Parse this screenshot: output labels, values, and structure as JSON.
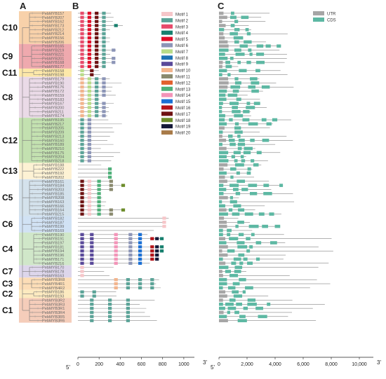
{
  "panels": {
    "a": "A",
    "b": "B",
    "c": "C"
  },
  "groups": [
    {
      "name": "C10",
      "color": "#f7c99b",
      "genes": [
        "PebMYB157",
        "PebMYB207",
        "PebMYB162",
        "PebMYB173",
        "PebMYB212",
        "PebMYB214",
        "PebMYB156",
        "PebMYB206"
      ]
    },
    {
      "name": "C9",
      "color": "#ec9aa0",
      "genes": [
        "PebMYB165",
        "PebMYB219",
        "PebMYB221",
        "PebMYB201",
        "PebMYB168",
        "PebMYB177"
      ]
    },
    {
      "name": "C11",
      "color": "#fde49a",
      "genes": [
        "PebMYB158",
        "PebMYB198"
      ]
    },
    {
      "name": "C8",
      "color": "#e6d3e3",
      "genes": [
        "PebMYB179",
        "PebMYB190",
        "PebMYB176",
        "PebMYB172",
        "PebMYB159",
        "PebMYB183",
        "PebMYB167",
        "PebMYB200",
        "PebMYB211",
        "PebMYB174"
      ]
    },
    {
      "name": "C12",
      "color": "#b9dca2",
      "genes": [
        "PebMYB195",
        "PebMYB217",
        "PebMYB205",
        "PebMYB209",
        "PebMYB213",
        "PebMYB160",
        "PebMYB189",
        "PebMYB210",
        "PebMYB175",
        "PebMYB204",
        "PebMYB218"
      ]
    },
    {
      "name": "C13",
      "color": "#fdf0cc",
      "genes": [
        "PebMYB188",
        "PebMYB222",
        "PebMYB192",
        "PebMYB202"
      ]
    },
    {
      "name": "C5",
      "color": "#cddde9",
      "genes": [
        "PebMYB161",
        "PebMYB184",
        "PebMYB203",
        "PebMYB185",
        "PebMYB208",
        "PebMYB163",
        "PebMYB166",
        "PebMYB164",
        "PebMYB215"
      ]
    },
    {
      "name": "C6",
      "color": "#c9ddf2",
      "genes": [
        "PebMYB182",
        "PebMYB187",
        "PebMYB199",
        "PebMYB169"
      ]
    },
    {
      "name": "C4",
      "color": "#c8e3bf",
      "genes": [
        "PebMYB190",
        "PebMYB191",
        "PebMYB197",
        "PebMYB181",
        "PebMYB194",
        "PebMYB196",
        "PebMYB171",
        "PebMYB216"
      ]
    },
    {
      "name": "C7",
      "color": "#d7cfe8",
      "genes": [
        "PebMYB170",
        "PebMYB178",
        "PebMYB163"
      ]
    },
    {
      "name": "C3",
      "color": "#fbd7aa",
      "genes": [
        "PebMYB3R8",
        "PebMYB4R1",
        "PebMYB4R2"
      ]
    },
    {
      "name": "C2",
      "color": "#fbe6b5",
      "genes": [
        "PebMYB186",
        "PebMYB193"
      ]
    },
    {
      "name": "C1",
      "color": "#f3c4ae",
      "genes": [
        "PebMYB3R2",
        "PebMYB3R3",
        "PebMYB3R1",
        "PebMYB3R4",
        "PebMYB3R5",
        "PebMYB3R6"
      ]
    }
  ],
  "motif_legend": [
    {
      "label": "Motif 1",
      "color": "#f6c6c9"
    },
    {
      "label": "Motif 2",
      "color": "#5aa397"
    },
    {
      "label": "Motif 3",
      "color": "#e84a6a"
    },
    {
      "label": "Motif 4",
      "color": "#17806e"
    },
    {
      "label": "Motif 5",
      "color": "#e0102a"
    },
    {
      "label": "Motif 6",
      "color": "#8c95b7"
    },
    {
      "label": "Motif 7",
      "color": "#b8dc88"
    },
    {
      "label": "Motif 8",
      "color": "#1f73b4"
    },
    {
      "label": "Motif 9",
      "color": "#5a4a9a"
    },
    {
      "label": "Motif 10",
      "color": "#f2b48c"
    },
    {
      "label": "Motif 11",
      "color": "#8a8a6e"
    },
    {
      "label": "Motif 12",
      "color": "#e2612e"
    },
    {
      "label": "Motif 13",
      "color": "#4fb079"
    },
    {
      "label": "Motif 14",
      "color": "#f394b8"
    },
    {
      "label": "Motif 15",
      "color": "#1a6fd4"
    },
    {
      "label": "Motif 16",
      "color": "#b3141a"
    },
    {
      "label": "Motif 17",
      "color": "#6e1212"
    },
    {
      "label": "Motif 18",
      "color": "#6c8c2a"
    },
    {
      "label": "Motif 19",
      "color": "#141838"
    },
    {
      "label": "Motif 20",
      "color": "#a87a48"
    }
  ],
  "structure_legend": [
    {
      "label": "UTR",
      "color": "#a6a6a6"
    },
    {
      "label": "CDS",
      "color": "#5db8a3"
    }
  ],
  "axis_b": {
    "ticks": [
      "0",
      "200",
      "400",
      "600",
      "800",
      "1000"
    ],
    "range": [
      0,
      1100
    ],
    "start_label": "5'",
    "end_label": "3'"
  },
  "axis_c": {
    "ticks": [
      "0",
      "2,000",
      "4,000",
      "6,000",
      "8,000",
      "10,000"
    ],
    "range": [
      0,
      11000
    ],
    "start_label": "5'",
    "end_label": "3'"
  }
}
